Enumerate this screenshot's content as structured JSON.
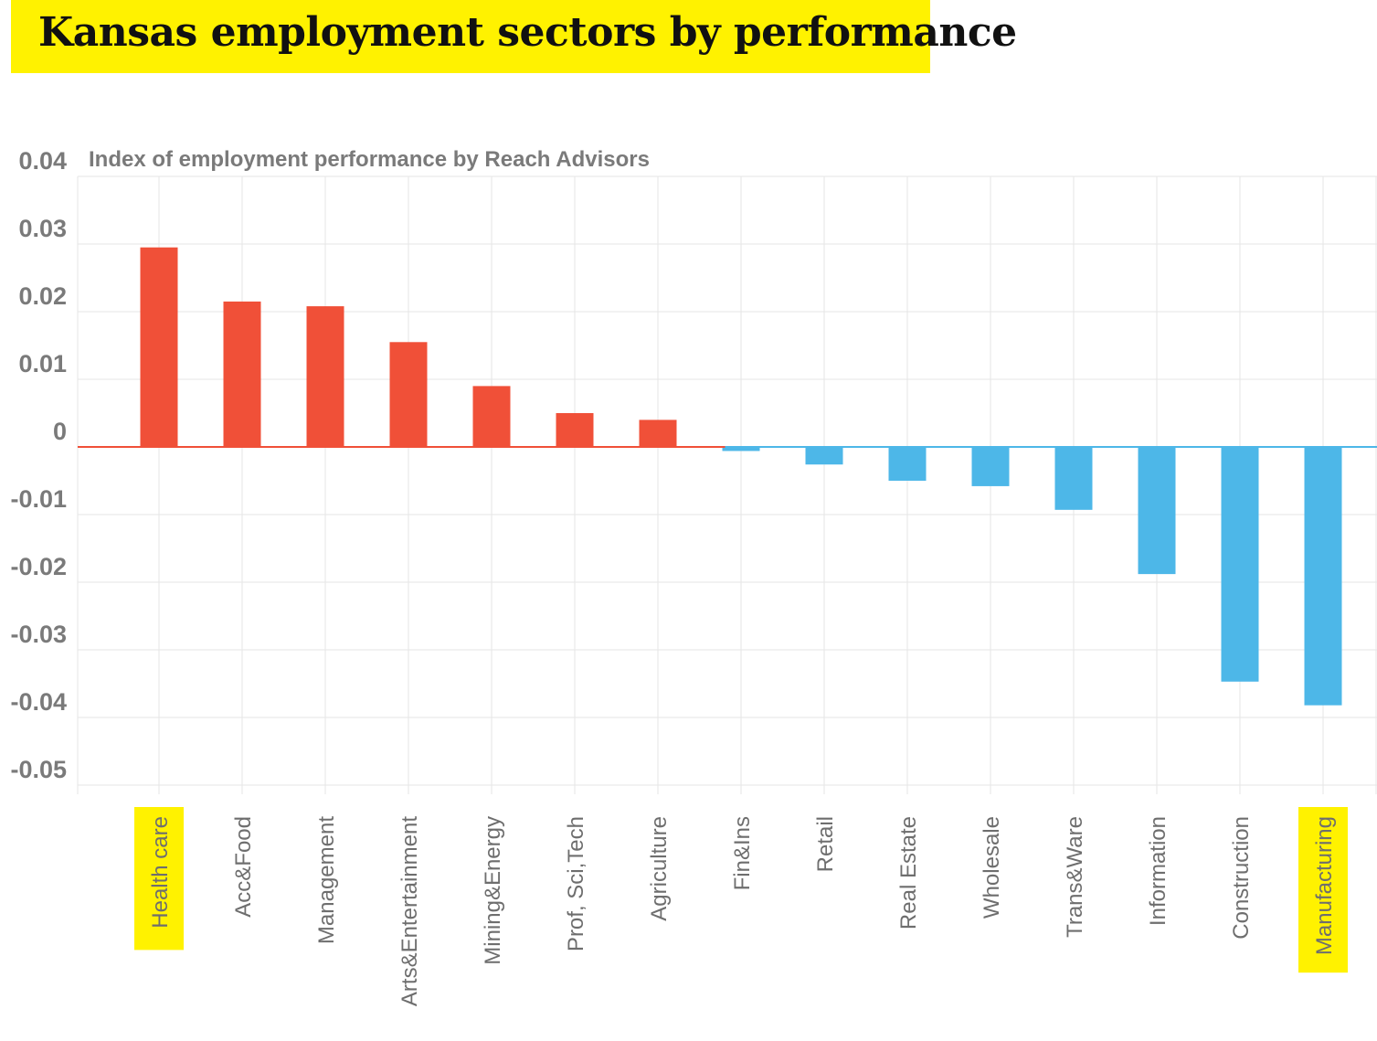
{
  "header": {
    "title": "Kansas employment sectors by performance"
  },
  "colors": {
    "positive": "#f05038",
    "negative": "#4db7e8",
    "highlight": "#fff200",
    "grid": "#e6e6e6",
    "axis_text": "#7a7a7a"
  },
  "chart_data": {
    "type": "bar",
    "title": "Kansas employment sectors by performance",
    "subtitle": "Index of employment performance by Reach Advisors",
    "xlabel": "",
    "ylabel": "",
    "ylim": [
      -0.05,
      0.04
    ],
    "yticks": [
      0.04,
      0.03,
      0.02,
      0.01,
      0,
      -0.01,
      -0.02,
      -0.03,
      -0.04,
      -0.05
    ],
    "ytick_labels": [
      "0.04",
      "0.03",
      "0.02",
      "0.01",
      "0",
      "-0.01",
      "-0.02",
      "-0.03",
      "-0.04",
      "-0.05"
    ],
    "grid": true,
    "categories": [
      "Health care",
      "Acc&Food",
      "Management",
      "Arts&Entertainment",
      "Mining&Energy",
      "Prof, Sci,Tech",
      "Agriculture",
      "Fin&Ins",
      "Retail",
      "Real Estate",
      "Wholesale",
      "Trans&Ware",
      "Information",
      "Construction",
      "Manufacturing"
    ],
    "values": [
      0.0295,
      0.0215,
      0.0208,
      0.0155,
      0.009,
      0.005,
      0.004,
      -0.0006,
      -0.0026,
      -0.005,
      -0.0058,
      -0.0093,
      -0.0188,
      -0.0347,
      -0.0382
    ],
    "highlighted": [
      "Health care",
      "Manufacturing"
    ]
  }
}
